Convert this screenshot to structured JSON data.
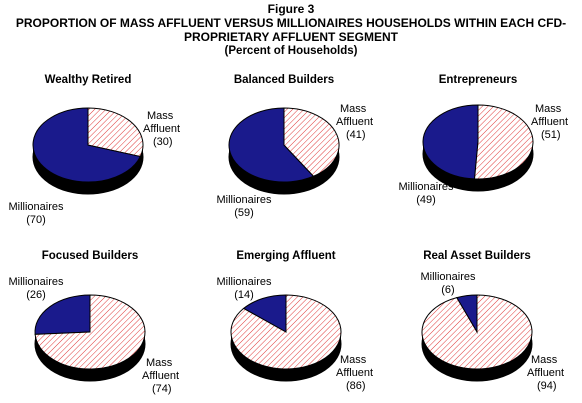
{
  "header": {
    "figure": "Figure 3",
    "title_line1": "PROPORTION OF MASS AFFLUENT VERSUS MILLIONAIRES HOUSEHOLDS WITHIN EACH CFD-",
    "title_line2": "PROPRIETARY AFFLUENT SEGMENT",
    "subtitle": "(Percent of Households)"
  },
  "colors": {
    "millionaires": "#1a1a8c",
    "mass_affluent_hatch": "#e03a3a",
    "background": "#ffffff",
    "outline": "#000000"
  },
  "chart_data": [
    {
      "type": "pie",
      "title": "Wealthy Retired",
      "labels": [
        "Mass Affluent",
        "Millionaires"
      ],
      "values": [
        30,
        70
      ]
    },
    {
      "type": "pie",
      "title": "Balanced Builders",
      "labels": [
        "Mass Affluent",
        "Millionaires"
      ],
      "values": [
        41,
        59
      ]
    },
    {
      "type": "pie",
      "title": "Entrepreneurs",
      "labels": [
        "Mass Affluent",
        "Millionaires"
      ],
      "values": [
        51,
        49
      ]
    },
    {
      "type": "pie",
      "title": "Focused Builders",
      "labels": [
        "Mass Affluent",
        "Millionaires"
      ],
      "values": [
        74,
        26
      ]
    },
    {
      "type": "pie",
      "title": "Emerging Affluent",
      "labels": [
        "Mass Affluent",
        "Millionaires"
      ],
      "values": [
        86,
        14
      ]
    },
    {
      "type": "pie",
      "title": "Real Asset Builders",
      "labels": [
        "Mass Affluent",
        "Millionaires"
      ],
      "values": [
        94,
        6
      ]
    }
  ]
}
